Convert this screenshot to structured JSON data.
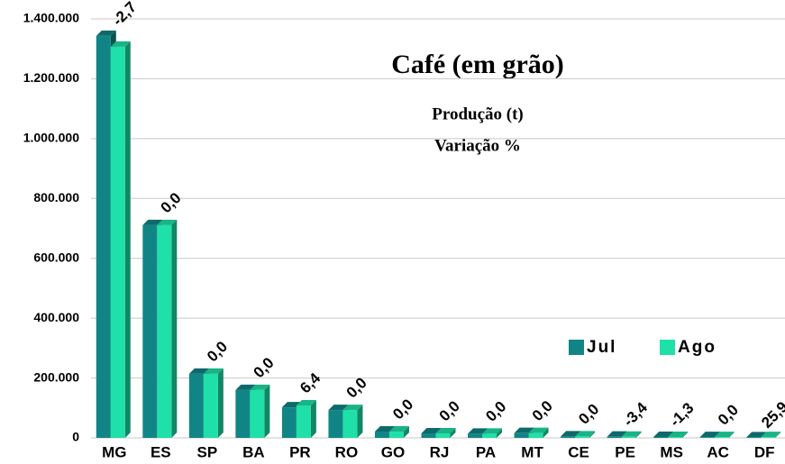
{
  "chart_data": {
    "type": "bar",
    "title": "Café (em grão)",
    "subtitle": [
      "Produção (t)",
      "Variação %"
    ],
    "categories": [
      "MG",
      "ES",
      "SP",
      "BA",
      "PR",
      "RO",
      "GO",
      "RJ",
      "PA",
      "MT",
      "CE",
      "PE",
      "MS",
      "AC",
      "DF"
    ],
    "series": [
      {
        "name": "Jul",
        "color": "#118585",
        "values": [
          1343000,
          711000,
          214000,
          160000,
          102000,
          93000,
          21000,
          15000,
          14000,
          16000,
          5000,
          4000,
          3000,
          2500,
          2000
        ]
      },
      {
        "name": "Ago",
        "color": "#1fe0a8",
        "values": [
          1307000,
          711000,
          214000,
          160000,
          108500,
          93000,
          21000,
          15000,
          14000,
          16000,
          5000,
          3864,
          2961,
          2500,
          2518
        ]
      }
    ],
    "annotations": [
      "-2,7",
      "0,0",
      "0,0",
      "0,0",
      "6,4",
      "0,0",
      "0,0",
      "0,0",
      "0,0",
      "0,0",
      "0,0",
      "-3,4",
      "-1,3",
      "0,0",
      "25,9"
    ],
    "ylim": [
      0,
      1400000
    ],
    "yticks": [
      0,
      {
        "value": 200000,
        "label": "200.000"
      },
      {
        "value": 400000,
        "label": "400.000"
      },
      {
        "value": 600000,
        "label": "600.000"
      },
      {
        "value": 800000,
        "label": "800.000"
      },
      {
        "value": 1000000,
        "label": "1.000.000"
      },
      {
        "value": 1200000,
        "label": "1.200.000"
      },
      {
        "value": 1400000,
        "label": "1.400.000"
      }
    ],
    "grid": true,
    "legend": "right"
  }
}
